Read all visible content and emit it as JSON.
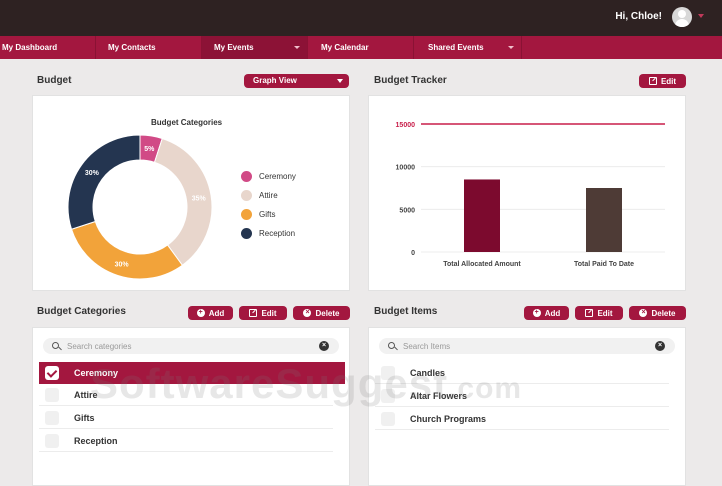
{
  "header": {
    "greeting": "Hi, Chloe!",
    "avatar_icon": "user-avatar-icon",
    "caret_icon": "chevron-down-icon"
  },
  "nav": {
    "items": [
      {
        "label": "My Dashboard",
        "active": false,
        "dropdown": false
      },
      {
        "label": "My Contacts",
        "active": false,
        "dropdown": false
      },
      {
        "label": "My Events",
        "active": true,
        "dropdown": true
      },
      {
        "label": "My Calendar",
        "active": false,
        "dropdown": false
      },
      {
        "label": "Shared Events",
        "active": false,
        "dropdown": true
      }
    ]
  },
  "budget": {
    "title": "Budget",
    "view_select": "Graph View",
    "chart_title": "Budget Categories"
  },
  "tracker": {
    "title": "Budget Tracker",
    "edit_label": "Edit"
  },
  "categories": {
    "title": "Budget Categories",
    "add_label": "Add",
    "edit_label": "Edit",
    "delete_label": "Delete",
    "search_placeholder": "Search categories",
    "items": [
      {
        "label": "Ceremony",
        "selected": true
      },
      {
        "label": "Attire",
        "selected": false
      },
      {
        "label": "Gifts",
        "selected": false
      },
      {
        "label": "Reception",
        "selected": false
      }
    ]
  },
  "items": {
    "title": "Budget Items",
    "add_label": "Add",
    "edit_label": "Edit",
    "delete_label": "Delete",
    "search_placeholder": "Search Items",
    "rows": [
      {
        "label": "Candles"
      },
      {
        "label": "Altar Flowers"
      },
      {
        "label": "Church Programs"
      }
    ]
  },
  "watermark": {
    "main": "SoftwareSuggest",
    "suffix": ".com"
  },
  "colors": {
    "accent": "#a3173f",
    "topbar": "#2e2222"
  },
  "chart_data": [
    {
      "type": "pie",
      "title": "Budget Categories",
      "categories": [
        "Ceremony",
        "Attire",
        "Gifts",
        "Reception"
      ],
      "values": [
        5,
        35,
        30,
        30
      ],
      "value_labels": [
        "5%",
        "35%",
        "30%",
        "30%"
      ],
      "colors": [
        "#d14a86",
        "#e8d6cc",
        "#f2a33a",
        "#243550"
      ],
      "legend": "right"
    },
    {
      "type": "bar",
      "categories": [
        "Total Allocated Amount",
        "Total Paid To Date"
      ],
      "values": [
        8500,
        7500
      ],
      "colors": [
        "#7c0a2e",
        "#4e3b36"
      ],
      "ylim": [
        0,
        15000
      ],
      "yticks": [
        0,
        5000,
        10000,
        15000
      ],
      "reference_line": 15000,
      "grid": true
    }
  ]
}
